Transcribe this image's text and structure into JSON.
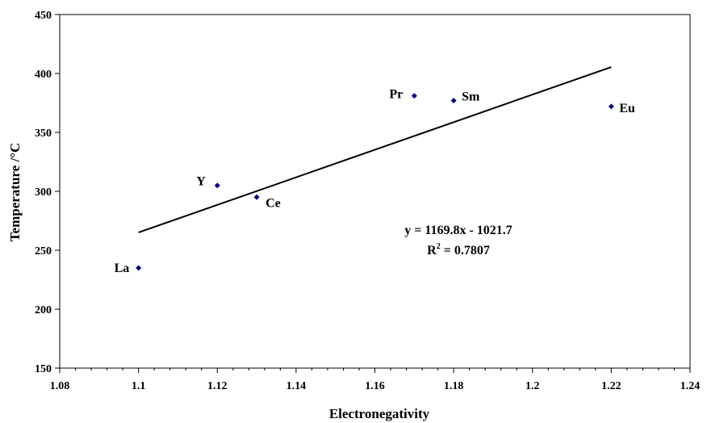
{
  "chart_data": {
    "type": "scatter",
    "title": "",
    "xlabel": "Electronegativity",
    "ylabel": "Temperature /°C",
    "xlim": [
      1.08,
      1.24
    ],
    "ylim": [
      150,
      450
    ],
    "xticks": [
      "1.08",
      "1.1",
      "1.12",
      "1.14",
      "1.16",
      "1.18",
      "1.2",
      "1.22",
      "1.24"
    ],
    "yticks": [
      "150",
      "200",
      "250",
      "300",
      "350",
      "400",
      "450"
    ],
    "grid": false,
    "marker_color": "#00008b",
    "points": [
      {
        "label": "La",
        "x": 1.1,
        "y": 235
      },
      {
        "label": "Y",
        "x": 1.12,
        "y": 305
      },
      {
        "label": "Ce",
        "x": 1.13,
        "y": 295
      },
      {
        "label": "Pr",
        "x": 1.17,
        "y": 381
      },
      {
        "label": "Sm",
        "x": 1.18,
        "y": 377
      },
      {
        "label": "Eu",
        "x": 1.22,
        "y": 372
      }
    ],
    "trendline": {
      "slope": 1169.8,
      "intercept": -1021.7,
      "x_range": [
        1.1,
        1.22
      ],
      "equation": "y = 1169.8x - 1021.7",
      "r2_prefix": "R",
      "r2_sup": "2",
      "r2_value": " = 0.7807"
    }
  }
}
